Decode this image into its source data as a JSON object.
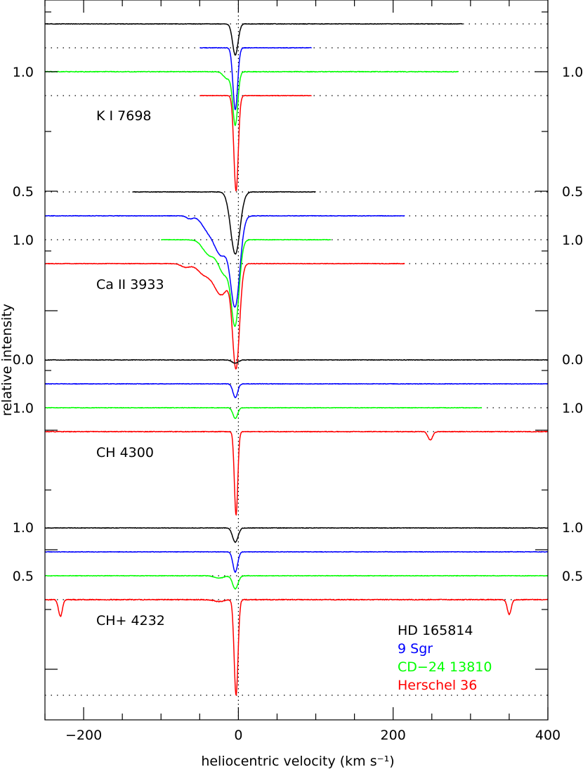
{
  "chart_data": {
    "type": "line",
    "xlabel": "heliocentric velocity (km s⁻¹)",
    "ylabel": "relative intensity",
    "xlim": [
      -250,
      400
    ],
    "x_ticks": [
      "−200",
      "0",
      "200",
      "400"
    ],
    "x_tick_values": [
      -200,
      0,
      200,
      400
    ],
    "reference_velocity": 0,
    "legend": {
      "placement": "bottom-right",
      "entries": [
        {
          "name": "HD 165814",
          "color": "#000000"
        },
        {
          "name": "9 Sgr",
          "color": "#0000ff"
        },
        {
          "name": "CD−24 13810",
          "color": "#00ff00"
        },
        {
          "name": "Herschel 36",
          "color": "#ff0000"
        }
      ]
    },
    "panels": [
      {
        "label": "K I 7698",
        "ylim": [
          0.5,
          1.0
        ],
        "left_ticks": [
          "1.0",
          "0.5"
        ],
        "right_ticks": [
          "1.0",
          "0.5"
        ],
        "series": [
          {
            "name": "HD 165814",
            "color": "#000000",
            "continuum": 1.2,
            "x_range": [
              -250,
              290
            ],
            "lines": [
              {
                "v": -4,
                "depth": 0.13,
                "width": 3.5
              }
            ],
            "noise": 0.0012
          },
          {
            "name": "9 Sgr",
            "color": "#0000ff",
            "continuum": 1.1,
            "x_range": [
              -50,
              95
            ],
            "lines": [
              {
                "v": -4,
                "depth": 0.26,
                "width": 3.0
              }
            ],
            "noise": 0.0012
          },
          {
            "name": "CD−24 13810",
            "color": "#00ff00",
            "continuum": 1.0,
            "x_range": [
              -250,
              285
            ],
            "lines": [
              {
                "v": -4,
                "depth": 0.22,
                "width": 3.2
              },
              {
                "v": -14,
                "depth": 0.03,
                "width": 5
              }
            ],
            "noise": 0.0015
          },
          {
            "name": "Herschel 36",
            "color": "#ff0000",
            "continuum": 0.9,
            "x_range": [
              -50,
              95
            ],
            "lines": [
              {
                "v": -3,
                "depth": 0.4,
                "width": 2.8
              }
            ],
            "noise": 0.0012
          }
        ]
      },
      {
        "label": "Ca II 3933",
        "ylim": [
          0.0,
          1.0
        ],
        "left_ticks": [
          "0.5",
          "1.0",
          "0.0"
        ],
        "right_ticks": [
          "0.5",
          "1.0",
          "0.0"
        ],
        "series": [
          {
            "name": "HD 165814",
            "color": "#000000",
            "continuum": 1.2,
            "x_range": [
              -137,
              100
            ],
            "lines": [
              {
                "v": -4,
                "depth": 0.26,
                "width": 6
              }
            ],
            "noise": 0.0012
          },
          {
            "name": "9 Sgr",
            "color": "#0000ff",
            "continuum": 1.1,
            "x_range": [
              -250,
              215
            ],
            "lines": [
              {
                "v": -4,
                "depth": 0.36,
                "width": 6
              },
              {
                "v": -22,
                "depth": 0.16,
                "width": 9
              },
              {
                "v": -40,
                "depth": 0.05,
                "width": 8
              },
              {
                "v": -63,
                "depth": 0.012,
                "width": 4
              }
            ],
            "noise": 0.0012
          },
          {
            "name": "CD−24 13810",
            "color": "#00ff00",
            "continuum": 1.0,
            "x_range": [
              -100,
              120
            ],
            "lines": [
              {
                "v": -4,
                "depth": 0.33,
                "width": 5
              },
              {
                "v": -18,
                "depth": 0.14,
                "width": 8
              },
              {
                "v": -38,
                "depth": 0.06,
                "width": 8
              }
            ],
            "noise": 0.0012
          },
          {
            "name": "Herschel 36",
            "color": "#ff0000",
            "continuum": 0.9,
            "x_range": [
              -250,
              215
            ],
            "lines": [
              {
                "v": -3,
                "depth": 0.42,
                "width": 4.5
              },
              {
                "v": -22,
                "depth": 0.13,
                "width": 10
              },
              {
                "v": -45,
                "depth": 0.04,
                "width": 8
              },
              {
                "v": -68,
                "depth": 0.015,
                "width": 6
              }
            ],
            "noise": 0.0012
          }
        ]
      },
      {
        "label": "CH 4300",
        "ylim": [
          0.5,
          1.0
        ],
        "left_ticks": [
          "1.0",
          "0.5"
        ],
        "right_ticks": [
          "1.0",
          "0.5"
        ],
        "series": [
          {
            "name": "HD 165814",
            "color": "#000000",
            "continuum": 1.2,
            "x_range": [
              -250,
              400
            ],
            "lines": [
              {
                "v": -4,
                "depth": 0.014,
                "width": 4
              }
            ],
            "noise": 0.0012
          },
          {
            "name": "9 Sgr",
            "color": "#0000ff",
            "continuum": 1.1,
            "x_range": [
              -250,
              400
            ],
            "lines": [
              {
                "v": -4,
                "depth": 0.058,
                "width": 3
              }
            ],
            "noise": 0.0012
          },
          {
            "name": "CD−24 13810",
            "color": "#00ff00",
            "continuum": 1.0,
            "x_range": [
              -250,
              315
            ],
            "lines": [
              {
                "v": -4,
                "depth": 0.045,
                "width": 3
              }
            ],
            "noise": 0.0012
          },
          {
            "name": "Herschel 36",
            "color": "#ff0000",
            "continuum": 0.9,
            "x_range": [
              -250,
              400
            ],
            "lines": [
              {
                "v": -3,
                "depth": 0.35,
                "width": 2.2
              },
              {
                "v": 248,
                "depth": 0.035,
                "width": 3
              }
            ],
            "noise": 0.0015
          }
        ]
      },
      {
        "label": "CH+ 4232",
        "ylim": [
          0.5,
          1.0
        ],
        "left_ticks": [
          "1.0",
          "0.5"
        ],
        "right_ticks": [
          "1.0",
          "0.5"
        ],
        "series": [
          {
            "name": "HD 165814",
            "color": "#000000",
            "continuum": 1.2,
            "x_range": [
              -250,
              400
            ],
            "lines": [
              {
                "v": -4,
                "depth": 0.06,
                "width": 3.5
              }
            ],
            "noise": 0.0012
          },
          {
            "name": "9 Sgr",
            "color": "#0000ff",
            "continuum": 1.1,
            "x_range": [
              -250,
              400
            ],
            "lines": [
              {
                "v": -4,
                "depth": 0.085,
                "width": 3
              }
            ],
            "noise": 0.0012
          },
          {
            "name": "CD−24 13810",
            "color": "#00ff00",
            "continuum": 1.0,
            "x_range": [
              -250,
              400
            ],
            "lines": [
              {
                "v": -4,
                "depth": 0.055,
                "width": 3.5
              },
              {
                "v": -25,
                "depth": 0.01,
                "width": 6
              }
            ],
            "noise": 0.0012
          },
          {
            "name": "Herschel 36",
            "color": "#ff0000",
            "continuum": 0.9,
            "x_range": [
              -250,
              400
            ],
            "lines": [
              {
                "v": -3,
                "depth": 0.4,
                "width": 2.5
              },
              {
                "v": -230,
                "depth": 0.07,
                "width": 2.5
              },
              {
                "v": 350,
                "depth": 0.062,
                "width": 2.5
              },
              {
                "v": -25,
                "depth": 0.008,
                "width": 6
              }
            ],
            "noise": 0.0018
          }
        ]
      }
    ]
  }
}
